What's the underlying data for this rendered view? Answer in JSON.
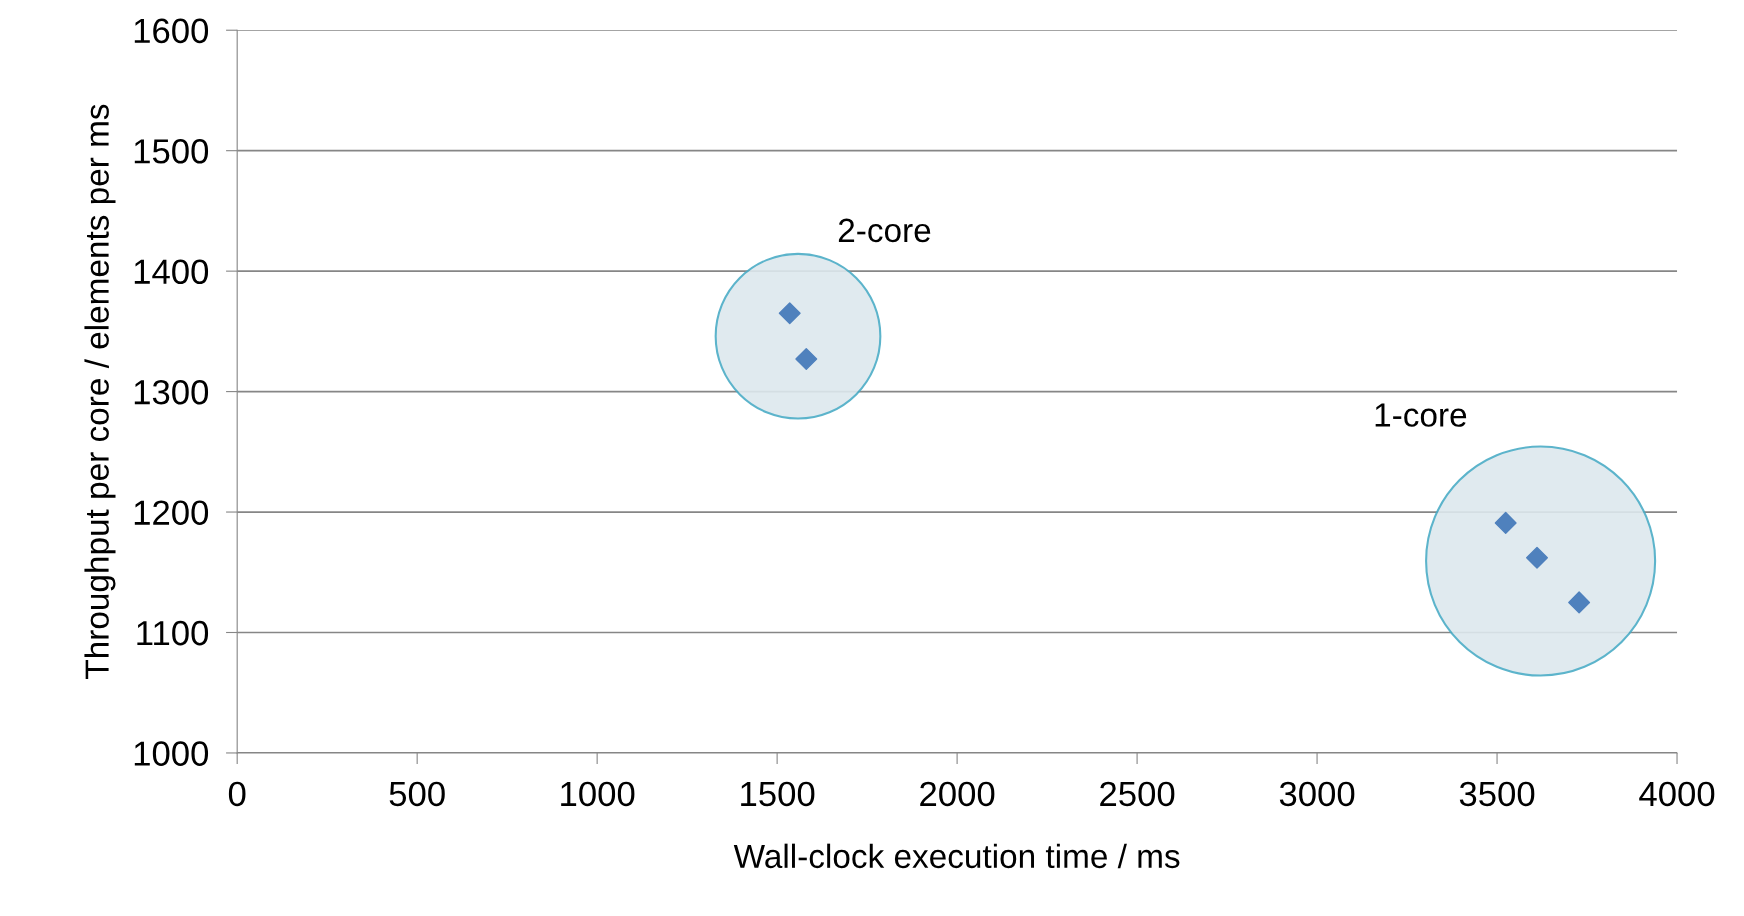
{
  "chart_data": {
    "type": "scatter",
    "xlabel": "Wall-clock execution time / ms",
    "ylabel": "Throughput per core / elements per ms",
    "series": [
      {
        "color": "#4f81bd",
        "x": [
          1535,
          1581
        ],
        "values": [
          1365,
          1327
        ]
      },
      {
        "color": "#4f81bd",
        "x": [
          3524,
          3611,
          3728
        ],
        "values": [
          1191,
          1162,
          1125
        ]
      }
    ],
    "annotations": [
      "2-core",
      "1-core"
    ],
    "xlim": [
      0,
      4000
    ],
    "xticks": [
      0,
      500,
      1000,
      1500,
      2000,
      2500,
      3000,
      3500,
      4000
    ],
    "ylim": [
      1000,
      1600
    ],
    "yticks": [
      1000,
      1100,
      1200,
      1300,
      1400,
      1500,
      1600
    ],
    "grid": "y",
    "marker": "diamond"
  }
}
